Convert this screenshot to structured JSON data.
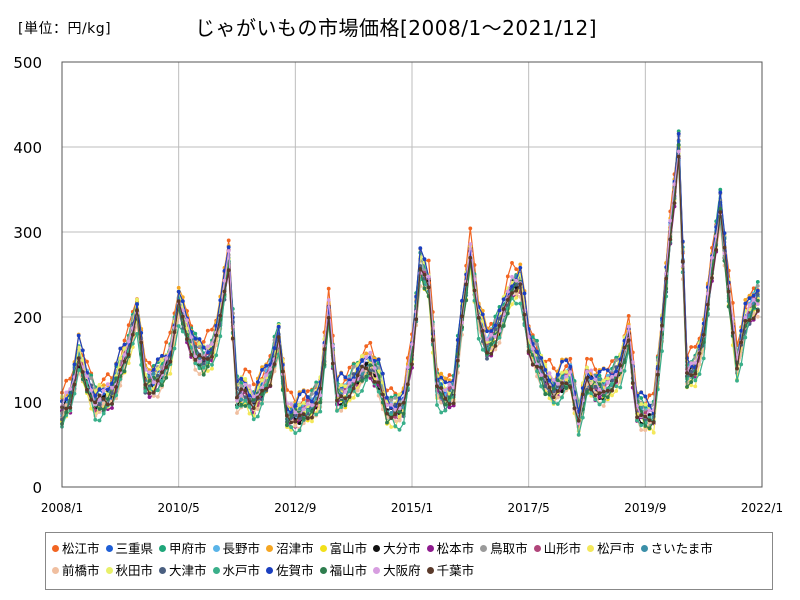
{
  "header": {
    "unit_label": "[単位：円/kg]",
    "title": "じゃがいもの市場価格[2008/1～2021/12]"
  },
  "chart_data": {
    "type": "line",
    "title": "じゃがいもの市場価格[2008/1～2021/12]",
    "unit": "[単位：円/kg]",
    "ylim": [
      0,
      500
    ],
    "y_ticks": [
      0,
      100,
      200,
      300,
      400,
      500
    ],
    "x_tick_labels": [
      "2008/1",
      "2010/5",
      "2012/9",
      "2015/1",
      "2017/5",
      "2019/9",
      "2022/1"
    ],
    "grid": true,
    "legend_position": "bottom",
    "baseline": [
      [
        "2008/01",
        88
      ],
      [
        "2008/03",
        105
      ],
      [
        "2008/05",
        155
      ],
      [
        "2008/07",
        125
      ],
      [
        "2008/09",
        100
      ],
      [
        "2008/11",
        102
      ],
      [
        "2009/01",
        112
      ],
      [
        "2009/03",
        140
      ],
      [
        "2009/05",
        165
      ],
      [
        "2009/07",
        205
      ],
      [
        "2009/09",
        125
      ],
      [
        "2009/11",
        125
      ],
      [
        "2010/01",
        135
      ],
      [
        "2010/03",
        155
      ],
      [
        "2010/05",
        215
      ],
      [
        "2010/07",
        185
      ],
      [
        "2010/09",
        160
      ],
      [
        "2010/11",
        150
      ],
      [
        "2011/01",
        160
      ],
      [
        "2011/03",
        200
      ],
      [
        "2011/05",
        270
      ],
      [
        "2011/07",
        110
      ],
      [
        "2011/09",
        112
      ],
      [
        "2011/11",
        100
      ],
      [
        "2012/01",
        115
      ],
      [
        "2012/03",
        135
      ],
      [
        "2012/05",
        175
      ],
      [
        "2012/07",
        85
      ],
      [
        "2012/09",
        85
      ],
      [
        "2012/11",
        90
      ],
      [
        "2013/01",
        95
      ],
      [
        "2013/03",
        110
      ],
      [
        "2013/05",
        205
      ],
      [
        "2013/07",
        110
      ],
      [
        "2013/09",
        110
      ],
      [
        "2013/11",
        125
      ],
      [
        "2014/01",
        135
      ],
      [
        "2014/03",
        145
      ],
      [
        "2014/05",
        130
      ],
      [
        "2014/07",
        92
      ],
      [
        "2014/09",
        90
      ],
      [
        "2014/11",
        95
      ],
      [
        "2015/01",
        160
      ],
      [
        "2015/03",
        260
      ],
      [
        "2015/05",
        240
      ],
      [
        "2015/07",
        120
      ],
      [
        "2015/09",
        105
      ],
      [
        "2015/11",
        115
      ],
      [
        "2016/01",
        200
      ],
      [
        "2016/03",
        275
      ],
      [
        "2016/05",
        200
      ],
      [
        "2016/07",
        165
      ],
      [
        "2016/09",
        180
      ],
      [
        "2016/11",
        205
      ],
      [
        "2017/01",
        235
      ],
      [
        "2017/03",
        240
      ],
      [
        "2017/05",
        170
      ],
      [
        "2017/07",
        150
      ],
      [
        "2017/09",
        125
      ],
      [
        "2017/11",
        115
      ],
      [
        "2018/01",
        125
      ],
      [
        "2018/03",
        130
      ],
      [
        "2018/05",
        80
      ],
      [
        "2018/07",
        125
      ],
      [
        "2018/09",
        120
      ],
      [
        "2018/11",
        115
      ],
      [
        "2019/01",
        125
      ],
      [
        "2019/03",
        140
      ],
      [
        "2019/05",
        175
      ],
      [
        "2019/07",
        95
      ],
      [
        "2019/09",
        85
      ],
      [
        "2019/11",
        85
      ],
      [
        "2020/01",
        185
      ],
      [
        "2020/03",
        300
      ],
      [
        "2020/05",
        400
      ],
      [
        "2020/07",
        135
      ],
      [
        "2020/09",
        140
      ],
      [
        "2020/11",
        175
      ],
      [
        "2021/01",
        260
      ],
      [
        "2021/03",
        330
      ],
      [
        "2021/05",
        230
      ],
      [
        "2021/07",
        145
      ],
      [
        "2021/09",
        195
      ],
      [
        "2021/11",
        215
      ],
      [
        "2021/12",
        220
      ]
    ],
    "series": [
      {
        "name": "松江市",
        "color": "#f26522",
        "offset": 18
      },
      {
        "name": "三重県",
        "color": "#1f5fd6",
        "offset": 4
      },
      {
        "name": "甲府市",
        "color": "#1fa67a",
        "offset": 10
      },
      {
        "name": "長野市",
        "color": "#5ab4e8",
        "offset": 2
      },
      {
        "name": "沼津市",
        "color": "#f5a623",
        "offset": 14
      },
      {
        "name": "富山市",
        "color": "#f2e01a",
        "offset": -6
      },
      {
        "name": "大分市",
        "color": "#111111",
        "offset": -4
      },
      {
        "name": "松本市",
        "color": "#8e1a8e",
        "offset": -8
      },
      {
        "name": "鳥取市",
        "color": "#9a9a9a",
        "offset": 6
      },
      {
        "name": "山形市",
        "color": "#b0457a",
        "offset": -2
      },
      {
        "name": "松戸市",
        "color": "#f4e85a",
        "offset": -10
      },
      {
        "name": "さいたま市",
        "color": "#3b8fa8",
        "offset": 0
      },
      {
        "name": "前橋市",
        "color": "#f0bfa0",
        "offset": -12
      },
      {
        "name": "秋田市",
        "color": "#e8f06a",
        "offset": 8
      },
      {
        "name": "大津市",
        "color": "#4a5f80",
        "offset": -3
      },
      {
        "name": "水戸市",
        "color": "#3aaf8a",
        "offset": -14
      },
      {
        "name": "佐賀市",
        "color": "#1b3fc0",
        "offset": 12
      },
      {
        "name": "福山市",
        "color": "#2e7d4e",
        "offset": -6
      },
      {
        "name": "大阪府",
        "color": "#d79ee0",
        "offset": 3
      },
      {
        "name": "千葉市",
        "color": "#5a3a2a",
        "offset": -5
      }
    ]
  }
}
